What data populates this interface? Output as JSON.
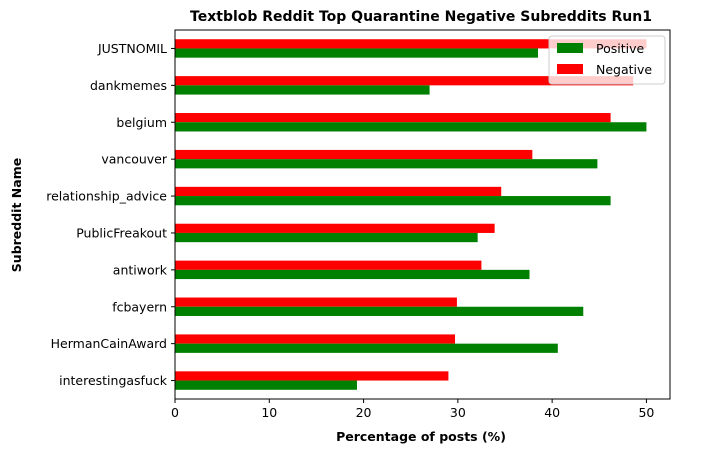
{
  "chart_data": {
    "type": "bar",
    "orientation": "horizontal",
    "title": "Textblob Reddit Top Quarantine Negative Subreddits Run1",
    "xlabel": "Percentage of posts (%)",
    "ylabel": "Subreddit Name",
    "xlim": [
      0,
      52.5
    ],
    "xticks": [
      0,
      10,
      20,
      30,
      40,
      50
    ],
    "grid": false,
    "legend_position": "top-right",
    "categories": [
      "JUSTNOMIL",
      "dankmemes",
      "belgium",
      "vancouver",
      "relationship_advice",
      "PublicFreakout",
      "antiwork",
      "fcbayern",
      "HermanCainAward",
      "interestingasfuck"
    ],
    "series": [
      {
        "name": "Positive",
        "color": "#008000",
        "values": [
          38.5,
          27.0,
          50.0,
          44.8,
          46.2,
          32.1,
          37.6,
          43.3,
          40.6,
          19.3
        ]
      },
      {
        "name": "Negative",
        "color": "#ff0000",
        "values": [
          50.0,
          48.6,
          46.2,
          37.9,
          34.6,
          33.9,
          32.5,
          29.9,
          29.7,
          29.0
        ]
      }
    ]
  }
}
